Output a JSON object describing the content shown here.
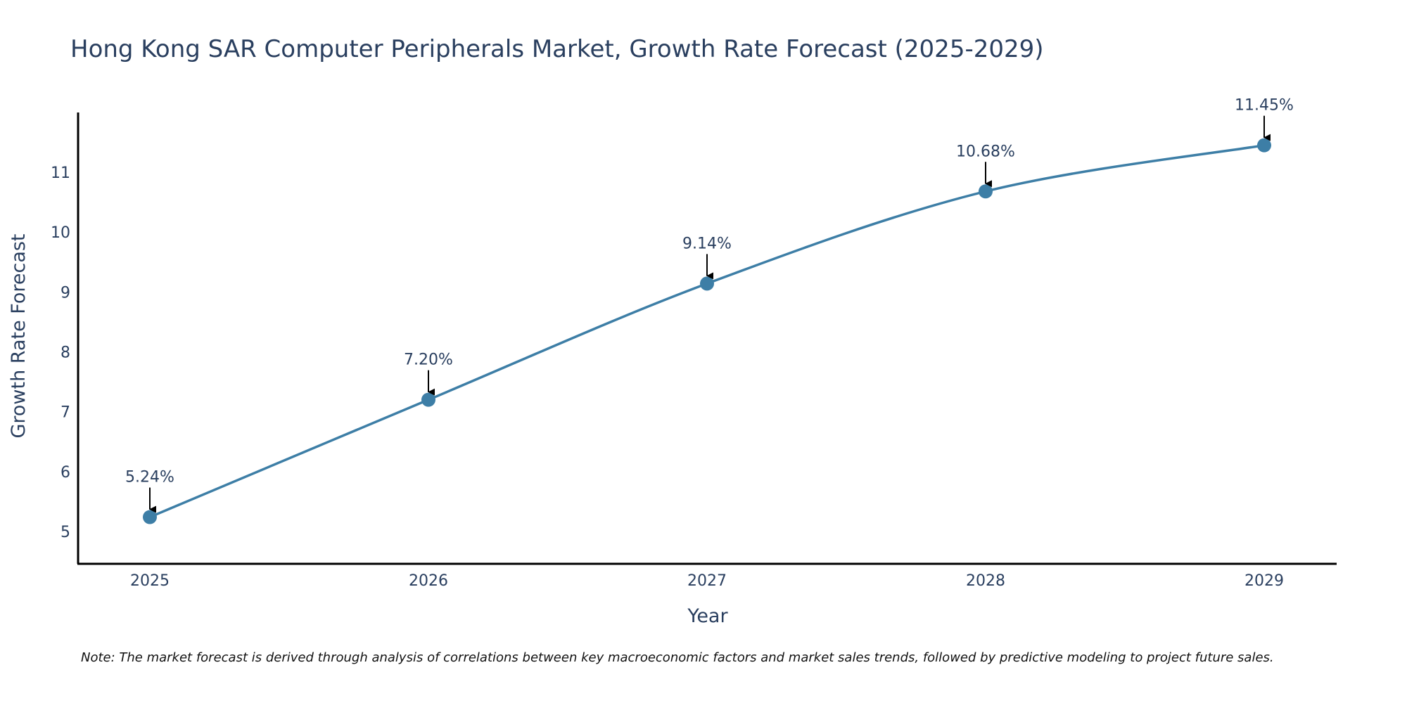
{
  "chart_data": {
    "type": "line",
    "title": "Hong Kong SAR Computer Peripherals Market, Growth Rate Forecast (2025-2029)",
    "xlabel": "Year",
    "ylabel": "Growth Rate Forecast",
    "x": [
      "2025",
      "2026",
      "2027",
      "2028",
      "2029"
    ],
    "series": [
      {
        "name": "Growth Rate Forecast",
        "values": [
          5.24,
          7.2,
          9.14,
          10.68,
          11.45
        ],
        "labels": [
          "5.24%",
          "7.20%",
          "9.14%",
          "10.68%",
          "11.45%"
        ]
      }
    ],
    "yticks": [
      "5",
      "6",
      "7",
      "8",
      "9",
      "10",
      "11"
    ],
    "ylim": [
      4.7,
      12.0
    ],
    "grid": false,
    "line_color": "#3d7ea6",
    "marker_color": "#3d7ea6",
    "note": "Note: The market forecast is derived through analysis of correlations between key macroeconomic factors and market sales trends, followed by predictive modeling to project future sales."
  }
}
